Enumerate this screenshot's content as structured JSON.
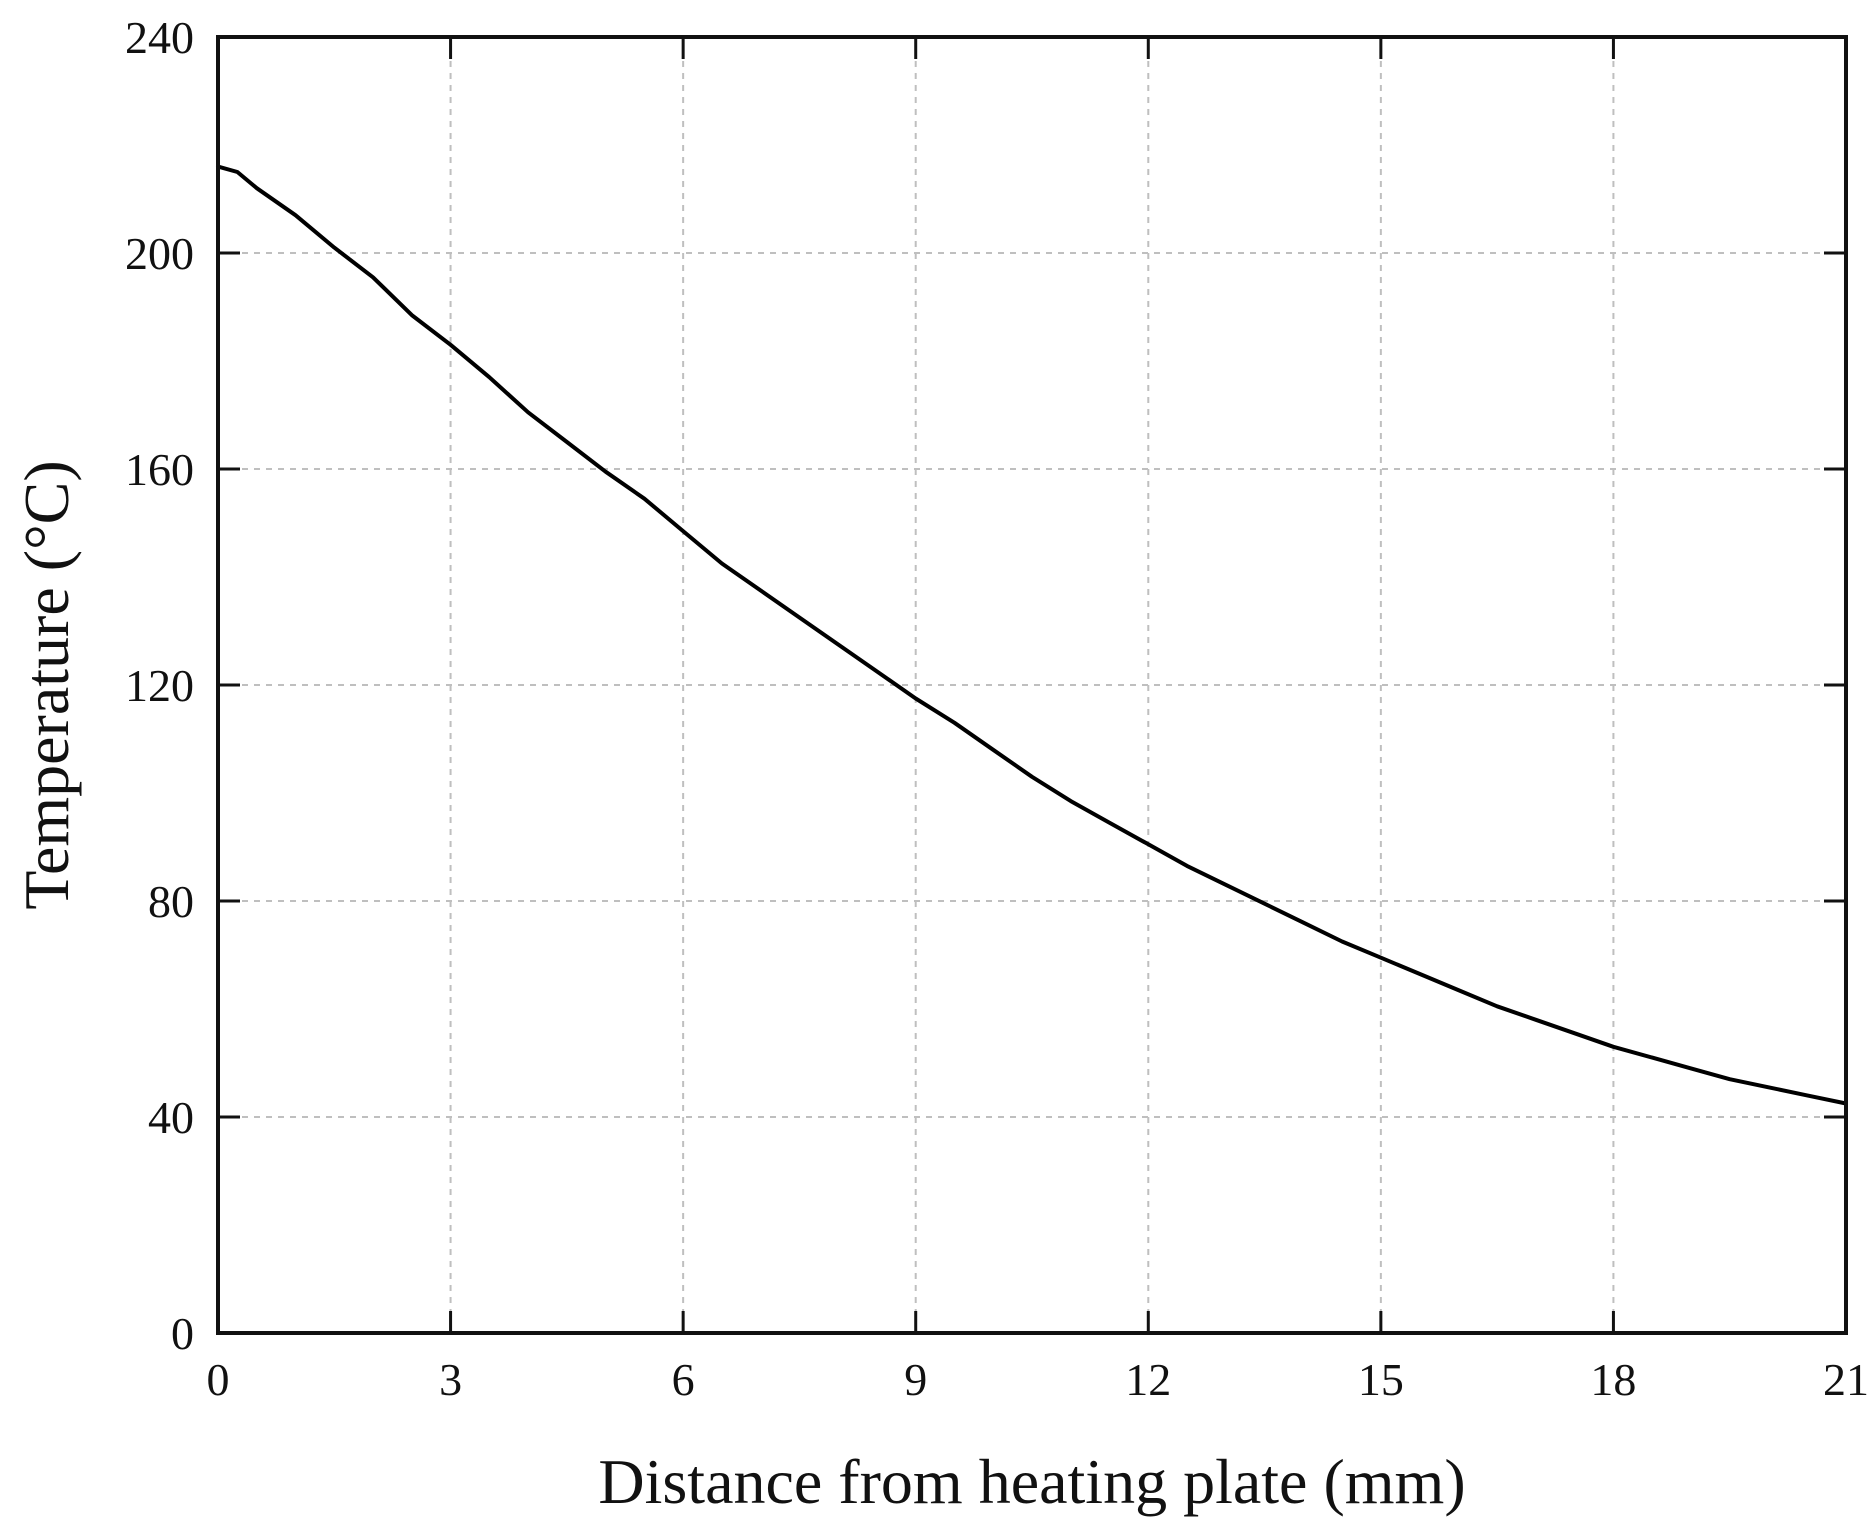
{
  "chart_data": {
    "type": "line",
    "title": "",
    "xlabel": "Distance from heating plate (mm)",
    "ylabel": "Temperature (°C)",
    "xlim": [
      0,
      21
    ],
    "ylim": [
      0,
      240
    ],
    "xticks": [
      0,
      3,
      6,
      9,
      12,
      15,
      18,
      21
    ],
    "yticks": [
      0,
      40,
      80,
      120,
      160,
      200,
      240
    ],
    "xtick_labels": [
      "0",
      "3",
      "6",
      "9",
      "12",
      "15",
      "18",
      "21"
    ],
    "ytick_labels": [
      "0",
      "40",
      "80",
      "120",
      "160",
      "200",
      "240"
    ],
    "grid": true,
    "legend": "none",
    "series": [
      {
        "name": "Temperature",
        "color": "#000000",
        "x": [
          0,
          0.25,
          0.5,
          1,
          1.5,
          2,
          2.5,
          3,
          3.5,
          4,
          4.5,
          5,
          5.5,
          6,
          6.5,
          7,
          7.5,
          8,
          8.5,
          9,
          9.5,
          10,
          10.5,
          11,
          11.5,
          12,
          12.5,
          13,
          13.5,
          14,
          14.5,
          15,
          15.5,
          16,
          16.5,
          17,
          17.5,
          18,
          18.5,
          19,
          19.5,
          20,
          20.5,
          21
        ],
        "y": [
          216,
          215,
          212,
          207,
          201,
          195.5,
          188.5,
          183,
          177,
          170.5,
          165,
          159.5,
          154.5,
          148.5,
          142.5,
          137.5,
          132.5,
          127.5,
          122.5,
          117.5,
          113,
          108,
          103,
          98.5,
          94.5,
          90.5,
          86.5,
          83,
          79.5,
          76,
          72.5,
          69.5,
          66.5,
          63.5,
          60.5,
          58,
          55.5,
          53,
          51,
          49,
          47,
          45.5,
          44,
          42.5
        ]
      }
    ]
  }
}
